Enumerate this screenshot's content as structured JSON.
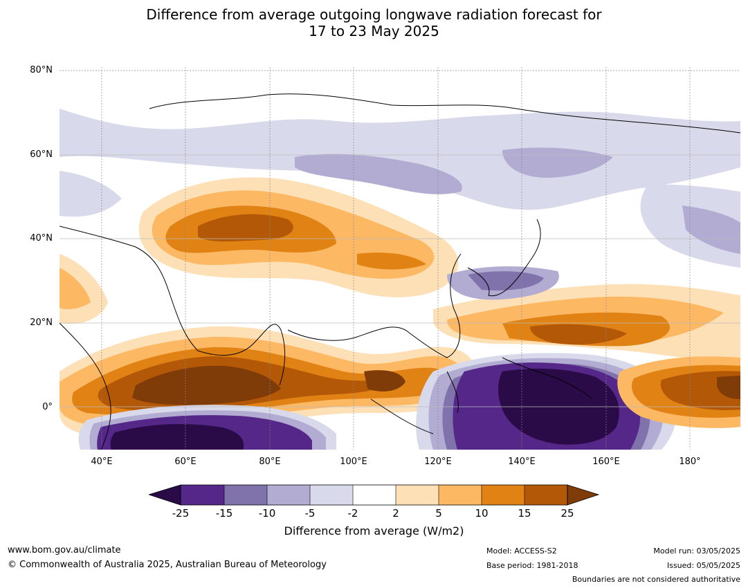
{
  "title": {
    "line1": "Difference from average outgoing longwave radiation forecast for",
    "line2": "17 to 23 May 2025"
  },
  "map": {
    "lat_labels": [
      "80°N",
      "60°N",
      "40°N",
      "20°N",
      "0°"
    ],
    "lon_labels": [
      "40°E",
      "60°E",
      "80°E",
      "100°E",
      "120°E",
      "140°E",
      "160°E",
      "180°"
    ],
    "extent": {
      "lon": [
        30,
        192
      ],
      "lat": [
        -10,
        81
      ]
    },
    "palette": {
      "lt_-25": "#2a0b48",
      "-25_-15": "#542788",
      "-15_-10": "#8073ac",
      "-10_-5": "#b2abd2",
      "-5_-2": "#d8daeb",
      "-2_2": "#ffffff",
      "2_5": "#fee0b6",
      "5_10": "#fdb863",
      "10_15": "#e08214",
      "15_25": "#b35806",
      "gt_25": "#7f3b08"
    }
  },
  "colorbar": {
    "ticks": [
      "-25",
      "-15",
      "-10",
      "-5",
      "-2",
      "2",
      "5",
      "10",
      "15",
      "25"
    ],
    "colors": [
      "#542788",
      "#8073ac",
      "#b2abd2",
      "#d8daeb",
      "#ffffff",
      "#fee0b6",
      "#fdb863",
      "#e08214",
      "#b35806"
    ],
    "under_color": "#2a0b48",
    "over_color": "#7f3b08",
    "label": "Difference from average (W/m2)"
  },
  "footer": {
    "website": "www.bom.gov.au/climate",
    "copyright": "© Commonwealth of Australia 2025, Australian Bureau of Meteorology",
    "model": "Model: ACCESS-S2",
    "base_period": "Base period: 1981-2018",
    "model_run": "Model run: 03/05/2025",
    "issued": "Issued: 05/05/2025",
    "boundaries": "Boundaries are not considered authoritative"
  }
}
